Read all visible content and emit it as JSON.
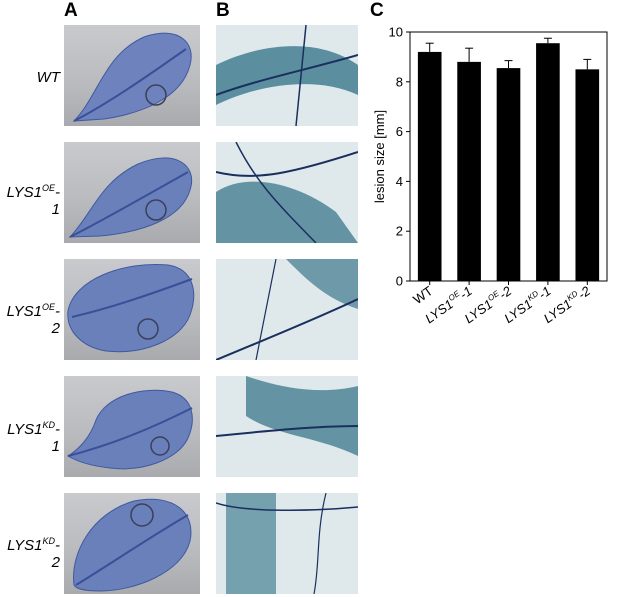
{
  "panels": {
    "a": "A",
    "b": "B",
    "c": "C"
  },
  "rows": [
    {
      "base": "WT",
      "sup": "",
      "suffix": ""
    },
    {
      "base": "LYS1",
      "sup": "OE",
      "suffix": "-1"
    },
    {
      "base": "LYS1",
      "sup": "OE",
      "suffix": "-2"
    },
    {
      "base": "LYS1",
      "sup": "KD",
      "suffix": "-1"
    },
    {
      "base": "LYS1",
      "sup": "KD",
      "suffix": "-2"
    }
  ],
  "colors": {
    "leaf": "#5570b4",
    "vein": "#2c3f8c",
    "stain": "#1f5f78",
    "micro_bg": "#e4eef0"
  },
  "chart_data": {
    "type": "bar",
    "categories": [
      {
        "base": "WT",
        "sup": "",
        "suffix": ""
      },
      {
        "base": "LYS1",
        "sup": "OE",
        "suffix": "-1"
      },
      {
        "base": "LYS1",
        "sup": "OE",
        "suffix": "-2"
      },
      {
        "base": "LYS1",
        "sup": "KD",
        "suffix": "-1"
      },
      {
        "base": "LYS1",
        "sup": "KD",
        "suffix": "-2"
      }
    ],
    "values": [
      9.2,
      8.8,
      8.55,
      9.55,
      8.5
    ],
    "errors": [
      0.35,
      0.55,
      0.3,
      0.2,
      0.4
    ],
    "ylabel": "lesion size [mm]",
    "ylim": [
      0,
      10
    ],
    "yticks": [
      0,
      2,
      4,
      6,
      8,
      10
    ],
    "bar_color": "#000000",
    "grid": false
  }
}
